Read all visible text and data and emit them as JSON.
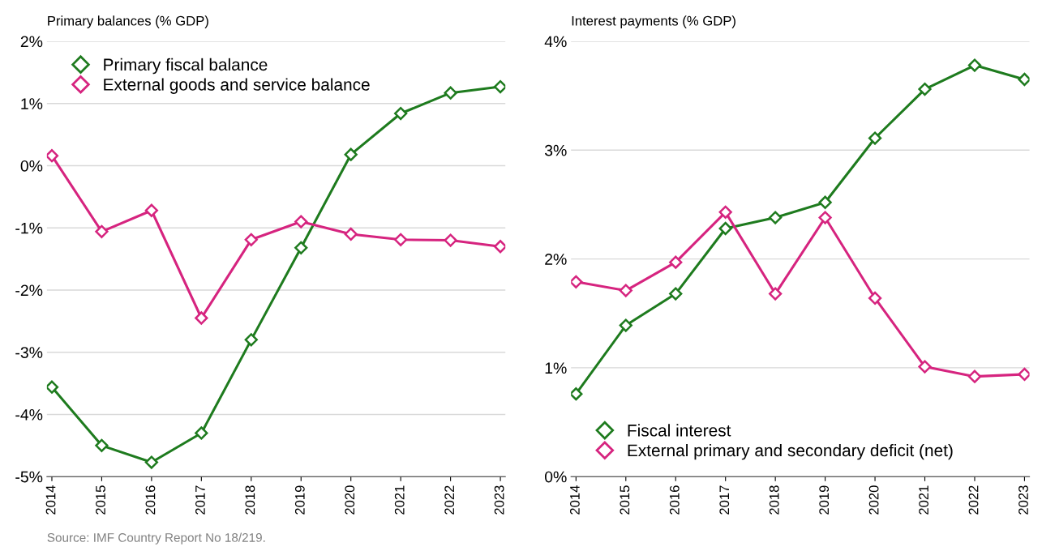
{
  "chart_data": [
    {
      "type": "line",
      "ylabel": "Primary balances (% GDP)",
      "categories": [
        "2014",
        "2015",
        "2016",
        "2017",
        "2018",
        "2019",
        "2020",
        "2021",
        "2022",
        "2023"
      ],
      "series": [
        {
          "name": "Primary fiscal balance",
          "color": "#1e7b1e",
          "values": [
            -3.56,
            -4.5,
            -4.77,
            -4.3,
            -2.8,
            -1.32,
            0.18,
            0.84,
            1.17,
            1.27
          ]
        },
        {
          "name": "External goods and service balance",
          "color": "#d6247f",
          "values": [
            0.16,
            -1.06,
            -0.72,
            -2.45,
            -1.19,
            -0.9,
            -1.1,
            -1.19,
            -1.2,
            -1.3
          ]
        }
      ],
      "ylim": [
        -5,
        2
      ],
      "yticks": [
        {
          "value": -5,
          "label": "-5%"
        },
        {
          "value": -4,
          "label": "-4%"
        },
        {
          "value": -3,
          "label": "-3%"
        },
        {
          "value": -2,
          "label": "-2%"
        },
        {
          "value": -1,
          "label": "-1%"
        },
        {
          "value": 0,
          "label": "0%"
        },
        {
          "value": 1,
          "label": "1%"
        },
        {
          "value": 2,
          "label": "2%"
        }
      ],
      "grid": "y",
      "legend": "top left",
      "marker": "diamond",
      "line_style": "solid",
      "annotations": [
        "Source: IMF Country Report No 18/219."
      ]
    },
    {
      "type": "line",
      "ylabel": "Interest payments (% GDP)",
      "categories": [
        "2014",
        "2015",
        "2016",
        "2017",
        "2018",
        "2019",
        "2020",
        "2021",
        "2022",
        "2023"
      ],
      "series": [
        {
          "name": "Fiscal interest",
          "color": "#1e7b1e",
          "values": [
            0.76,
            1.39,
            1.68,
            2.28,
            2.38,
            2.52,
            3.11,
            3.56,
            3.78,
            3.65
          ]
        },
        {
          "name": "External primary and secondary deficit (net)",
          "color": "#d6247f",
          "values": [
            1.79,
            1.71,
            1.97,
            2.43,
            1.68,
            2.38,
            1.64,
            1.01,
            0.92,
            0.94
          ]
        }
      ],
      "ylim": [
        0,
        4
      ],
      "yticks": [
        {
          "value": 0,
          "label": "0%"
        },
        {
          "value": 1,
          "label": "1%"
        },
        {
          "value": 2,
          "label": "2%"
        },
        {
          "value": 3,
          "label": "3%"
        },
        {
          "value": 4,
          "label": "4%"
        }
      ],
      "grid": "y",
      "legend": "bottom left",
      "marker": "diamond",
      "line_style": "solid"
    }
  ]
}
